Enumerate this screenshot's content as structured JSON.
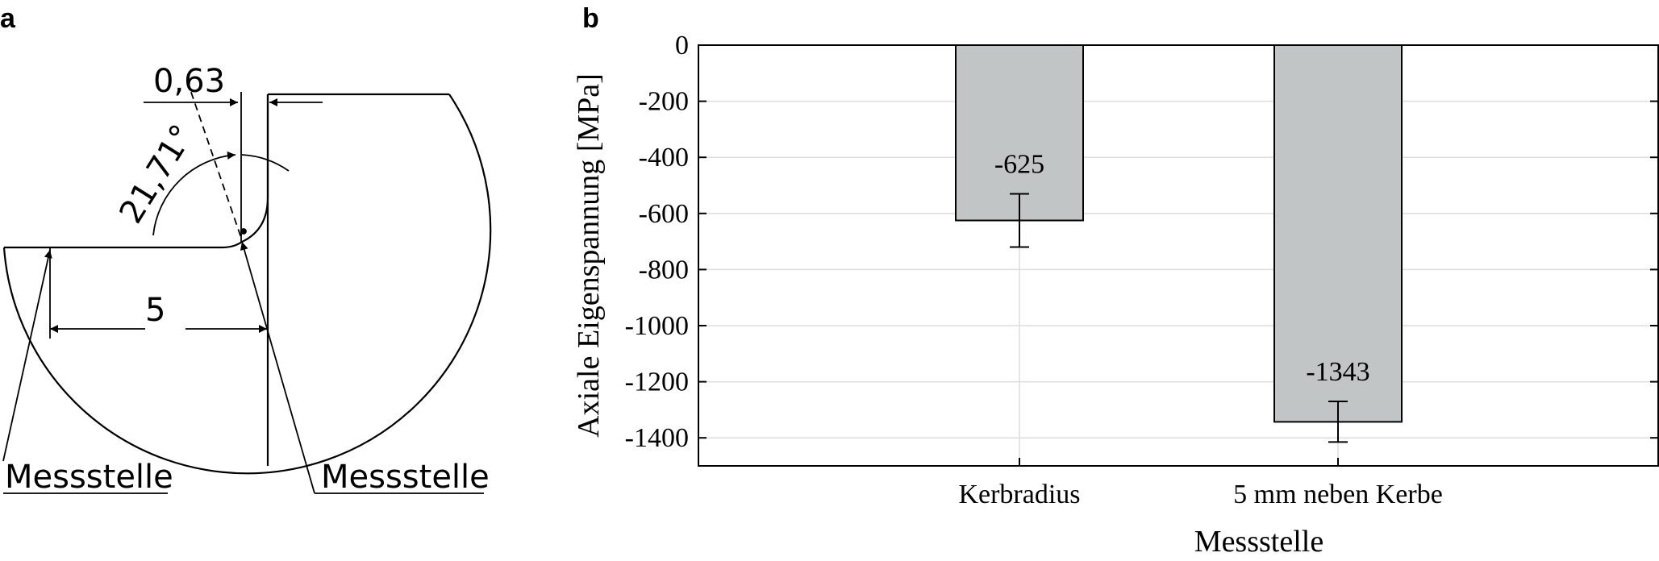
{
  "panel_a": {
    "letter": "a",
    "dimension_top": "0,63",
    "dimension_angle": "21,71°",
    "dimension_bottom": "5",
    "label_left": "Messstelle",
    "label_right": "Messstelle"
  },
  "panel_b": {
    "letter": "b"
  },
  "chart_data": {
    "type": "bar",
    "categories": [
      "Kerbradius",
      "5 mm neben Kerbe"
    ],
    "values": [
      -625,
      -1343
    ],
    "error_low": [
      -720,
      -1415
    ],
    "error_high": [
      -530,
      -1270
    ],
    "data_labels": [
      "-625",
      "-1343"
    ],
    "xlabel": "Messstelle",
    "ylabel": "Axiale Eigenspannung [MPa]",
    "ylim": [
      -1500,
      0
    ],
    "yticks": [
      0,
      -200,
      -400,
      -600,
      -800,
      -1000,
      -1200,
      -1400
    ],
    "ytick_labels": [
      "0",
      "-200",
      "-400",
      "-600",
      "-800",
      "-1000",
      "-1200",
      "-1400"
    ],
    "grid": true,
    "colors": {
      "bar": "#c2c5c6",
      "grid": "#dddddd",
      "axis": "#000000"
    }
  }
}
